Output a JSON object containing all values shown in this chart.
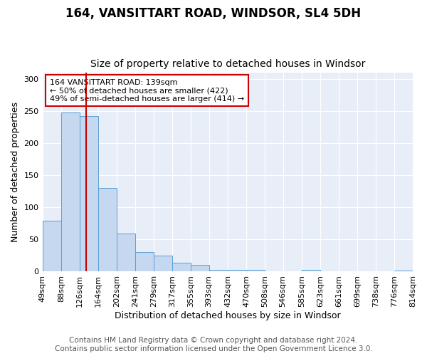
{
  "title1": "164, VANSITTART ROAD, WINDSOR, SL4 5DH",
  "title2": "Size of property relative to detached houses in Windsor",
  "xlabel": "Distribution of detached houses by size in Windsor",
  "ylabel": "Number of detached properties",
  "bin_edges": [
    49,
    88,
    126,
    164,
    202,
    241,
    279,
    317,
    355,
    393,
    432,
    470,
    508,
    546,
    585,
    623,
    661,
    699,
    738,
    776,
    814
  ],
  "bar_heights": [
    79,
    248,
    243,
    131,
    59,
    31,
    25,
    14,
    11,
    3,
    3,
    3,
    1,
    0,
    3,
    1,
    1,
    1,
    0,
    2
  ],
  "bar_color": "#c5d8f0",
  "bar_edge_color": "#5a9fd4",
  "property_size": 139,
  "red_line_color": "#cc0000",
  "annotation_text": "164 VANSITTART ROAD: 139sqm\n← 50% of detached houses are smaller (422)\n49% of semi-detached houses are larger (414) →",
  "annotation_box_color": "#ffffff",
  "annotation_box_edge": "#cc0000",
  "ylim": [
    0,
    310
  ],
  "yticks": [
    0,
    50,
    100,
    150,
    200,
    250,
    300
  ],
  "footer": "Contains HM Land Registry data © Crown copyright and database right 2024.\nContains public sector information licensed under the Open Government Licence 3.0.",
  "fig_background": "#ffffff",
  "plot_background": "#e8eef8",
  "grid_color": "#ffffff",
  "title1_fontsize": 12,
  "title2_fontsize": 10,
  "xlabel_fontsize": 9,
  "ylabel_fontsize": 9,
  "tick_fontsize": 8,
  "annot_fontsize": 8,
  "footer_fontsize": 7.5
}
